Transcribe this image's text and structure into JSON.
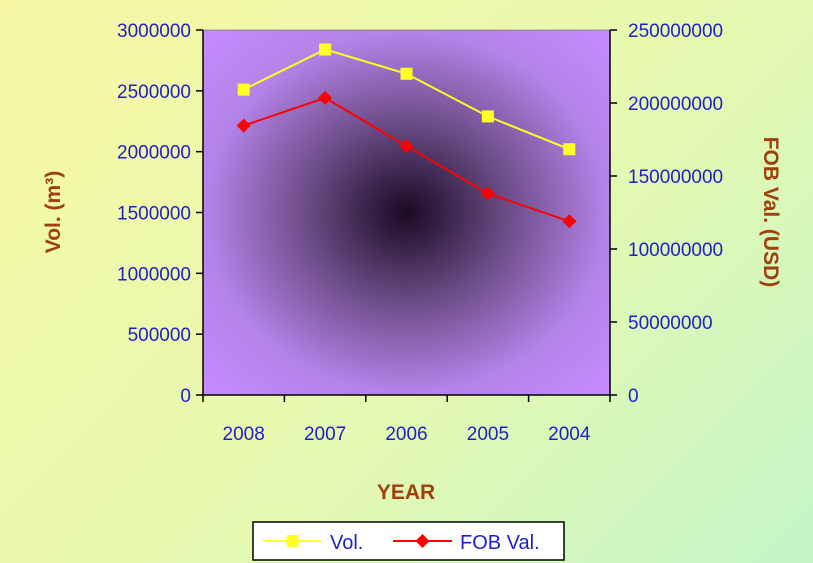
{
  "chart_data": {
    "type": "line",
    "categories": [
      "2008",
      "2007",
      "2006",
      "2005",
      "2004"
    ],
    "series": [
      {
        "name": "Vol.",
        "axis": "left",
        "color": "#ffff22",
        "marker": "square",
        "values": [
          2510000,
          2840000,
          2640000,
          2290000,
          2020000
        ]
      },
      {
        "name": "FOB Val.",
        "axis": "right",
        "color": "#ff0000",
        "marker": "diamond",
        "values": [
          184500000,
          203500000,
          170500000,
          138000000,
          119000000
        ]
      }
    ],
    "xlabel": "YEAR",
    "ylabel": "Vol. (m³)",
    "y2label": "FOB Val. (USD)",
    "ylim": [
      0,
      3000000
    ],
    "y2lim": [
      0,
      250000000
    ],
    "yticks": [
      "0",
      "500000",
      "1000000",
      "1500000",
      "2000000",
      "2500000",
      "3000000"
    ],
    "y2ticks": [
      "0",
      "50000000",
      "100000000",
      "150000000",
      "200000000",
      "250000000"
    ],
    "legend_position": "bottom",
    "grid": false,
    "plot_background": "#c68bff"
  }
}
